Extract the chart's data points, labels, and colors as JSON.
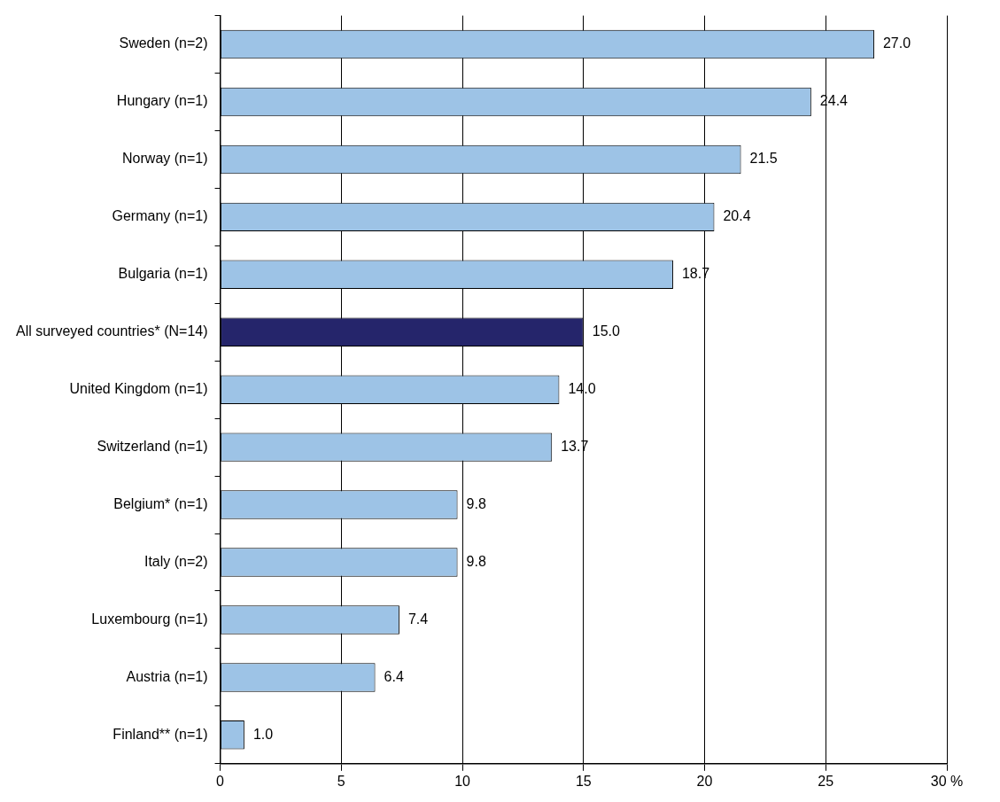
{
  "chart_data": {
    "type": "bar",
    "orientation": "horizontal",
    "categories": [
      "Sweden (n=2)",
      "Hungary (n=1)",
      "Norway (n=1)",
      "Germany (n=1)",
      "Bulgaria (n=1)",
      "All surveyed countries* (N=14)",
      "United Kingdom (n=1)",
      "Switzerland (n=1)",
      "Belgium* (n=1)",
      "Italy (n=2)",
      "Luxembourg (n=1)",
      "Austria (n=1)",
      "Finland** (n=1)"
    ],
    "values": [
      27.0,
      24.4,
      21.5,
      20.4,
      18.7,
      15.0,
      14.0,
      13.7,
      9.8,
      9.8,
      7.4,
      6.4,
      1.0
    ],
    "value_labels": [
      "27.0",
      "24.4",
      "21.5",
      "20.4",
      "18.7",
      "15.0",
      "14.0",
      "13.7",
      "9.8",
      "9.8",
      "7.4",
      "6.4",
      "1.0"
    ],
    "colors": [
      "#9dc3e6",
      "#9dc3e6",
      "#9dc3e6",
      "#9dc3e6",
      "#9dc3e6",
      "#25256b",
      "#9dc3e6",
      "#9dc3e6",
      "#9dc3e6",
      "#9dc3e6",
      "#9dc3e6",
      "#9dc3e6",
      "#9dc3e6"
    ],
    "xlim": [
      0,
      30
    ],
    "xticks": [
      0,
      5,
      10,
      15,
      20,
      25,
      {
        "value": 30,
        "label": "30 %"
      }
    ],
    "grid": "x"
  }
}
